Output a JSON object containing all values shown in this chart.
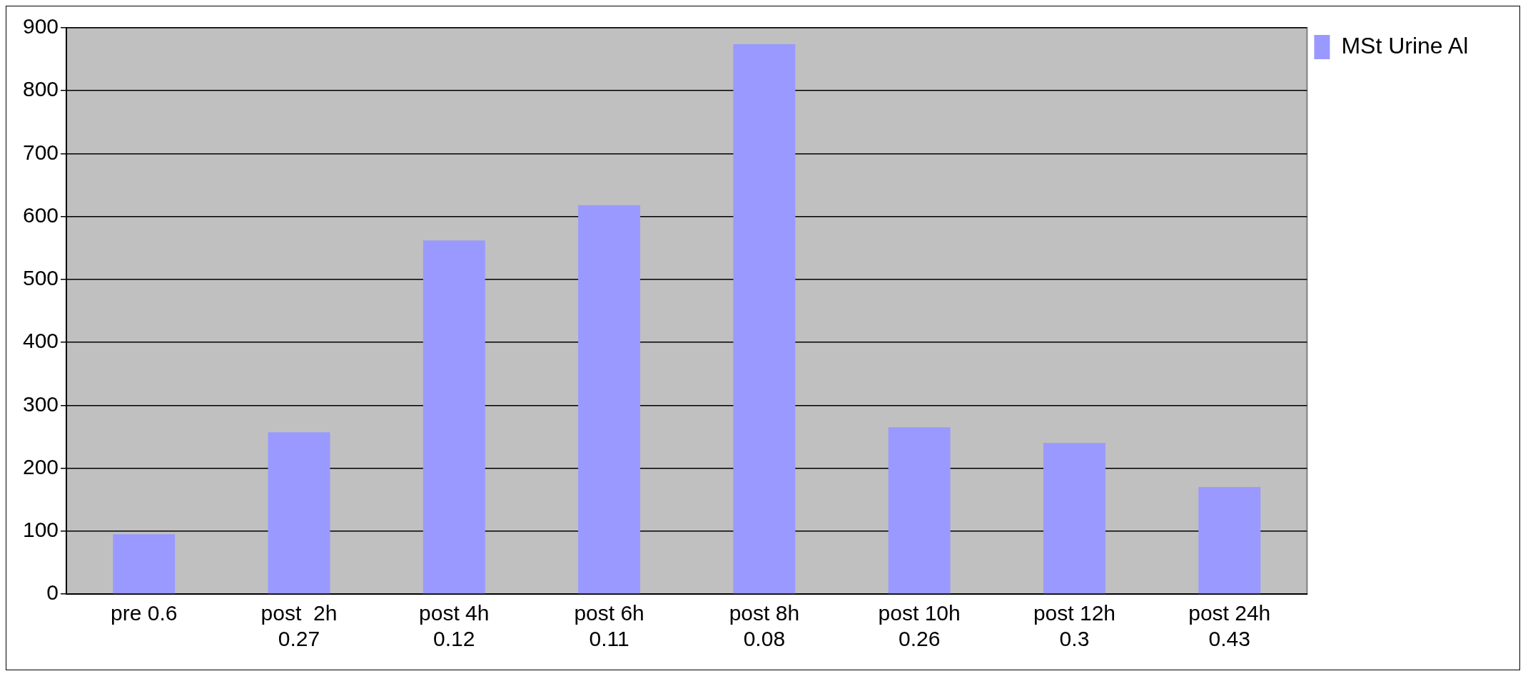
{
  "chart_data": {
    "type": "bar",
    "categories": [
      "pre 0.6",
      "post  2h\n0.27",
      "post 4h\n0.12",
      "post 6h\n0.11",
      "post 8h\n0.08",
      "post 10h\n0.26",
      "post 12h\n0.3",
      "post 24h\n0.43"
    ],
    "series": [
      {
        "name": "MSt Urine Al",
        "color": "#9999ff",
        "values": [
          95,
          257,
          562,
          618,
          874,
          265,
          240,
          170
        ]
      }
    ],
    "ylim": [
      0,
      900
    ],
    "yticks": [
      0,
      100,
      200,
      300,
      400,
      500,
      600,
      700,
      800,
      900
    ],
    "grid": "y",
    "legend": "right"
  }
}
